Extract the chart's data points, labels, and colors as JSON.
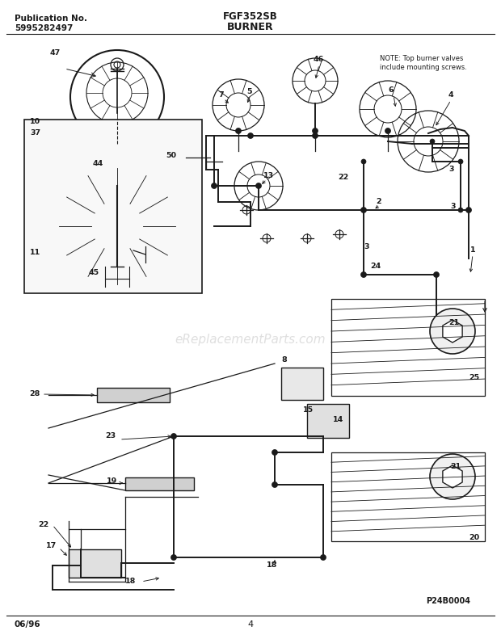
{
  "title_center": "FGF352SB",
  "subtitle_center": "BURNER",
  "pub_no_label": "Publication No.",
  "pub_no_value": "5995282497",
  "footer_left": "06/96",
  "footer_center": "4",
  "bg_color": "#ffffff",
  "border_color": "#000000",
  "text_color": "#000000",
  "note_text": "NOTE: Top burner valves\ninclude mounting screws.",
  "watermark": "eReplacementParts.com",
  "part_code": "P24B0004",
  "fig_width": 6.2,
  "fig_height": 7.91,
  "dpi": 100
}
